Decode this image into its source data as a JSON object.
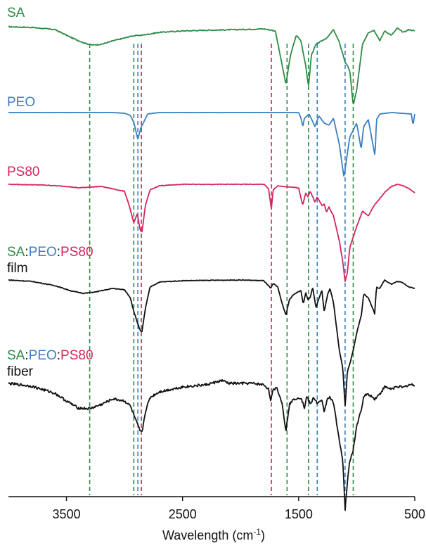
{
  "chart_data": {
    "type": "line",
    "xlabel": "Wavelength (cm",
    "xlabel_sup": "-1",
    "xlabel_close": ")",
    "xlim": [
      4000,
      500
    ],
    "x_reversed": true,
    "x_ticks": [
      3500,
      2500,
      1500,
      500
    ],
    "x_tick_labels": [
      "3500",
      "2500",
      "1500",
      "500"
    ],
    "colors": {
      "SA": "#2e8b46",
      "PEO": "#3b7fc4",
      "PS80": "#d4265e",
      "blend": "#111111"
    },
    "series": [
      {
        "name": "SA",
        "color": "#2e8b46",
        "baseline": 0,
        "noise": 0.7,
        "points": [
          [
            4000,
            0
          ],
          [
            3800,
            -1
          ],
          [
            3600,
            -4
          ],
          [
            3450,
            -16
          ],
          [
            3350,
            -23
          ],
          [
            3280,
            -26
          ],
          [
            3200,
            -25
          ],
          [
            3100,
            -20
          ],
          [
            3000,
            -16
          ],
          [
            2930,
            -13
          ],
          [
            2850,
            -12
          ],
          [
            2700,
            -8
          ],
          [
            2500,
            -6
          ],
          [
            2300,
            -5
          ],
          [
            2000,
            -4
          ],
          [
            1800,
            -3
          ],
          [
            1700,
            -6
          ],
          [
            1660,
            -40
          ],
          [
            1610,
            -82
          ],
          [
            1570,
            -40
          ],
          [
            1520,
            -12
          ],
          [
            1480,
            -20
          ],
          [
            1440,
            -55
          ],
          [
            1415,
            -85
          ],
          [
            1390,
            -40
          ],
          [
            1350,
            -25
          ],
          [
            1300,
            -20
          ],
          [
            1250,
            -15
          ],
          [
            1200,
            -4
          ],
          [
            1150,
            -22
          ],
          [
            1100,
            -50
          ],
          [
            1060,
            -62
          ],
          [
            1030,
            -112
          ],
          [
            1000,
            -90
          ],
          [
            950,
            -25
          ],
          [
            900,
            -8
          ],
          [
            850,
            -5
          ],
          [
            800,
            -20
          ],
          [
            760,
            -6
          ],
          [
            700,
            -12
          ],
          [
            650,
            -2
          ],
          [
            600,
            -8
          ],
          [
            550,
            -4
          ],
          [
            500,
            -6
          ]
        ]
      },
      {
        "name": "PEO",
        "color": "#3b7fc4",
        "baseline": 0,
        "noise": 0.15,
        "points": [
          [
            4000,
            0
          ],
          [
            3100,
            0
          ],
          [
            3000,
            -1
          ],
          [
            2950,
            -4
          ],
          [
            2920,
            -14
          ],
          [
            2885,
            -38
          ],
          [
            2860,
            -22
          ],
          [
            2800,
            -2
          ],
          [
            2700,
            0
          ],
          [
            1500,
            0
          ],
          [
            1480,
            -8
          ],
          [
            1465,
            -20
          ],
          [
            1450,
            -8
          ],
          [
            1410,
            -2
          ],
          [
            1360,
            -20
          ],
          [
            1343,
            -12
          ],
          [
            1325,
            -5
          ],
          [
            1280,
            -15
          ],
          [
            1240,
            -18
          ],
          [
            1200,
            -8
          ],
          [
            1150,
            -45
          ],
          [
            1110,
            -92
          ],
          [
            1080,
            -58
          ],
          [
            1060,
            -35
          ],
          [
            1000,
            -15
          ],
          [
            962,
            -52
          ],
          [
            940,
            -20
          ],
          [
            900,
            -10
          ],
          [
            842,
            -62
          ],
          [
            830,
            -10
          ],
          [
            800,
            -2
          ],
          [
            700,
            0
          ],
          [
            530,
            -2
          ],
          [
            515,
            -18
          ],
          [
            500,
            -2
          ]
        ]
      },
      {
        "name": "PS80",
        "color": "#d4265e",
        "baseline": 0,
        "noise": 0.4,
        "points": [
          [
            4000,
            0
          ],
          [
            3700,
            -1
          ],
          [
            3500,
            -3
          ],
          [
            3400,
            -5
          ],
          [
            3200,
            -3
          ],
          [
            3000,
            -10
          ],
          [
            2960,
            -30
          ],
          [
            2920,
            -55
          ],
          [
            2890,
            -42
          ],
          [
            2865,
            -65
          ],
          [
            2850,
            -68
          ],
          [
            2820,
            -30
          ],
          [
            2780,
            -8
          ],
          [
            2700,
            -2
          ],
          [
            2500,
            0
          ],
          [
            1800,
            0
          ],
          [
            1760,
            -6
          ],
          [
            1735,
            -35
          ],
          [
            1720,
            -8
          ],
          [
            1680,
            -2
          ],
          [
            1650,
            -3
          ],
          [
            1500,
            -5
          ],
          [
            1465,
            -30
          ],
          [
            1440,
            -12
          ],
          [
            1420,
            -18
          ],
          [
            1400,
            -10
          ],
          [
            1360,
            -25
          ],
          [
            1340,
            -18
          ],
          [
            1300,
            -30
          ],
          [
            1280,
            -28
          ],
          [
            1260,
            -40
          ],
          [
            1240,
            -32
          ],
          [
            1200,
            -45
          ],
          [
            1150,
            -80
          ],
          [
            1120,
            -110
          ],
          [
            1100,
            -138
          ],
          [
            1080,
            -125
          ],
          [
            1060,
            -90
          ],
          [
            1000,
            -60
          ],
          [
            950,
            -38
          ],
          [
            900,
            -45
          ],
          [
            850,
            -30
          ],
          [
            800,
            -20
          ],
          [
            750,
            -10
          ],
          [
            700,
            -3
          ],
          [
            650,
            0
          ],
          [
            600,
            -2
          ],
          [
            550,
            -6
          ],
          [
            500,
            -12
          ]
        ]
      },
      {
        "name": "SA:PEO:PS80 film",
        "color": "#111111",
        "baseline": 0,
        "noise": 0.5,
        "points": [
          [
            4000,
            0
          ],
          [
            3800,
            -2
          ],
          [
            3600,
            -8
          ],
          [
            3450,
            -16
          ],
          [
            3350,
            -19
          ],
          [
            3250,
            -17
          ],
          [
            3100,
            -12
          ],
          [
            3000,
            -14
          ],
          [
            2950,
            -25
          ],
          [
            2920,
            -45
          ],
          [
            2890,
            -60
          ],
          [
            2865,
            -72
          ],
          [
            2850,
            -74
          ],
          [
            2820,
            -40
          ],
          [
            2780,
            -10
          ],
          [
            2700,
            -3
          ],
          [
            2500,
            -1
          ],
          [
            2000,
            0
          ],
          [
            1800,
            -1
          ],
          [
            1740,
            -12
          ],
          [
            1720,
            -5
          ],
          [
            1680,
            -10
          ],
          [
            1640,
            -35
          ],
          [
            1610,
            -50
          ],
          [
            1580,
            -28
          ],
          [
            1540,
            -20
          ],
          [
            1480,
            -15
          ],
          [
            1460,
            -35
          ],
          [
            1440,
            -18
          ],
          [
            1420,
            -28
          ],
          [
            1400,
            -25
          ],
          [
            1380,
            -10
          ],
          [
            1350,
            -40
          ],
          [
            1330,
            -28
          ],
          [
            1300,
            -15
          ],
          [
            1280,
            -45
          ],
          [
            1250,
            -20
          ],
          [
            1230,
            -12
          ],
          [
            1200,
            -32
          ],
          [
            1150,
            -100
          ],
          [
            1120,
            -125
          ],
          [
            1100,
            -180
          ],
          [
            1080,
            -130
          ],
          [
            1060,
            -120
          ],
          [
            1030,
            -100
          ],
          [
            1000,
            -75
          ],
          [
            960,
            -50
          ],
          [
            940,
            -20
          ],
          [
            900,
            -25
          ],
          [
            845,
            -48
          ],
          [
            830,
            -10
          ],
          [
            800,
            -12
          ],
          [
            760,
            0
          ],
          [
            700,
            -6
          ],
          [
            650,
            -2
          ],
          [
            600,
            -4
          ],
          [
            550,
            -10
          ],
          [
            500,
            -12
          ]
        ]
      },
      {
        "name": "SA:PEO:PS80 fiber",
        "color": "#111111",
        "baseline": 0,
        "noise": 1.8,
        "points": [
          [
            4000,
            0
          ],
          [
            3800,
            -4
          ],
          [
            3600,
            -14
          ],
          [
            3500,
            -25
          ],
          [
            3400,
            -35
          ],
          [
            3300,
            -36
          ],
          [
            3200,
            -30
          ],
          [
            3100,
            -22
          ],
          [
            3000,
            -25
          ],
          [
            2950,
            -32
          ],
          [
            2920,
            -45
          ],
          [
            2890,
            -58
          ],
          [
            2865,
            -68
          ],
          [
            2850,
            -70
          ],
          [
            2820,
            -40
          ],
          [
            2780,
            -20
          ],
          [
            2700,
            -12
          ],
          [
            2500,
            -5
          ],
          [
            2300,
            -2
          ],
          [
            2160,
            4
          ],
          [
            2100,
            0
          ],
          [
            1900,
            0
          ],
          [
            1800,
            -2
          ],
          [
            1760,
            -8
          ],
          [
            1740,
            -24
          ],
          [
            1720,
            -10
          ],
          [
            1690,
            -5
          ],
          [
            1640,
            -30
          ],
          [
            1610,
            -68
          ],
          [
            1580,
            -30
          ],
          [
            1540,
            -22
          ],
          [
            1480,
            -20
          ],
          [
            1450,
            -35
          ],
          [
            1430,
            -18
          ],
          [
            1400,
            -30
          ],
          [
            1370,
            -20
          ],
          [
            1340,
            -28
          ],
          [
            1300,
            -25
          ],
          [
            1280,
            -40
          ],
          [
            1250,
            -20
          ],
          [
            1230,
            -20
          ],
          [
            1200,
            -28
          ],
          [
            1150,
            -80
          ],
          [
            1120,
            -110
          ],
          [
            1100,
            -180
          ],
          [
            1080,
            -140
          ],
          [
            1060,
            -110
          ],
          [
            1030,
            -95
          ],
          [
            1000,
            -60
          ],
          [
            960,
            -38
          ],
          [
            940,
            -18
          ],
          [
            900,
            -15
          ],
          [
            845,
            -22
          ],
          [
            800,
            -15
          ],
          [
            760,
            -5
          ],
          [
            700,
            -8
          ],
          [
            650,
            -4
          ],
          [
            600,
            -6
          ],
          [
            550,
            -2
          ],
          [
            500,
            -2
          ]
        ]
      }
    ],
    "reference_lines": [
      {
        "x": 3300,
        "color": "#2e8b46"
      },
      {
        "x": 2920,
        "color": "#2e8b46"
      },
      {
        "x": 2885,
        "color": "#3b7fc4"
      },
      {
        "x": 2855,
        "color": "#d4265e"
      },
      {
        "x": 1735,
        "color": "#d4265e"
      },
      {
        "x": 1600,
        "color": "#2e8b46"
      },
      {
        "x": 1415,
        "color": "#2e8b46"
      },
      {
        "x": 1340,
        "color": "#3b7fc4"
      },
      {
        "x": 1100,
        "color": "#3b7fc4"
      },
      {
        "x": 1030,
        "color": "#2e8b46"
      }
    ],
    "legend": "curve labels above each trace",
    "grid": false
  },
  "labels": {
    "sa": {
      "text": "SA",
      "color": "#2e8b46"
    },
    "peo": {
      "text": "PEO",
      "color": "#3b7fc4"
    },
    "ps80": {
      "text": "PS80",
      "color": "#d4265e"
    },
    "film": {
      "sa": "SA",
      "sep1": ":",
      "peo": "PEO",
      "sep2": ":",
      "ps80": "PS80",
      "suffix": "film"
    },
    "fiber": {
      "sa": "SA",
      "sep1": ":",
      "peo": "PEO",
      "sep2": ":",
      "ps80": "PS80",
      "suffix": "fiber"
    }
  }
}
